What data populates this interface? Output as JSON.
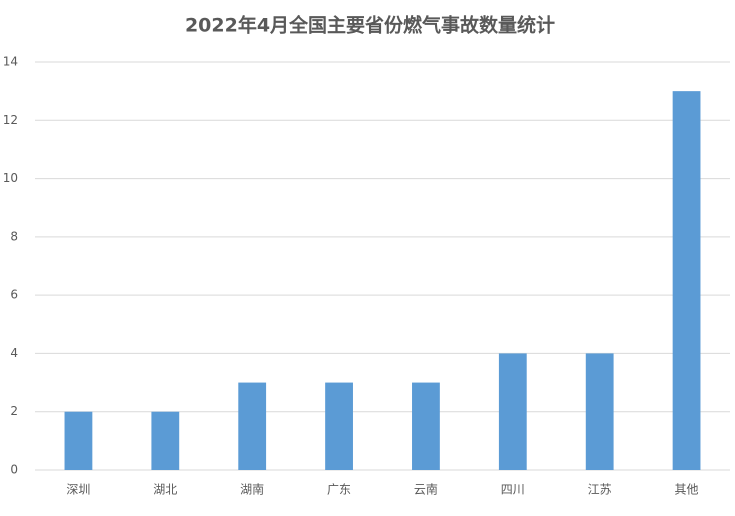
{
  "chart_data": {
    "type": "bar",
    "title": "2022年4月全国主要省份燃气事故数量统计",
    "categories": [
      "深圳",
      "湖北",
      "湖南",
      "广东",
      "云南",
      "四川",
      "江苏",
      "其他"
    ],
    "values": [
      2,
      2,
      3,
      3,
      3,
      4,
      4,
      13
    ],
    "color": "#5b9bd5",
    "ylim": [
      0,
      14
    ],
    "yticks": [
      0,
      2,
      4,
      6,
      8,
      10,
      12,
      14
    ],
    "grid": true
  }
}
